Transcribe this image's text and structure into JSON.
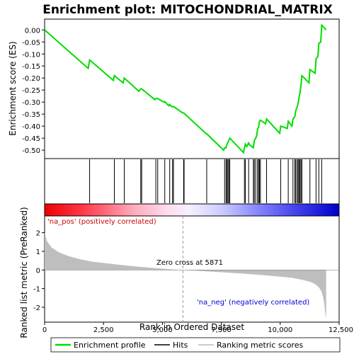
{
  "chart_data": {
    "type": "line",
    "title": "Enrichment plot: MITOCHONDRIAL_MATRIX",
    "top_panel": {
      "ylabel": "Enrichment score (ES)",
      "ylim": [
        -0.535,
        0.045
      ],
      "yticks": [
        0.0,
        -0.05,
        -0.1,
        -0.15,
        -0.2,
        -0.25,
        -0.3,
        -0.35,
        -0.4,
        -0.45,
        -0.5
      ],
      "ytick_labels": [
        "0.00",
        "-0.05",
        "-0.10",
        "-0.15",
        "-0.20",
        "-0.25",
        "-0.30",
        "-0.35",
        "-0.40",
        "-0.45",
        "-0.50"
      ],
      "series": [
        {
          "name": "Enrichment profile",
          "color": "#00dd00",
          "x": [
            0,
            1850,
            1910,
            2920,
            2960,
            3330,
            3380,
            4000,
            4080,
            4120,
            4680,
            4720,
            4800,
            5060,
            5100,
            5270,
            5310,
            5380,
            5430,
            5470,
            5860,
            5900,
            6840,
            6880,
            7600,
            7640,
            7700,
            7740,
            7780,
            7820,
            7860,
            8440,
            8480,
            8520,
            8580,
            8660,
            8700,
            8860,
            8900,
            8960,
            9000,
            9040,
            9080,
            9120,
            9160,
            9380,
            9420,
            9980,
            10020,
            10300,
            10340,
            10500,
            10540,
            10620,
            10660,
            10720,
            10760,
            10800,
            10840,
            10880,
            10920,
            11220,
            11260,
            11480,
            11520,
            11600,
            11640,
            11720,
            11760,
            11950
          ],
          "y": [
            0.0,
            -0.16,
            -0.125,
            -0.21,
            -0.19,
            -0.22,
            -0.2,
            -0.255,
            -0.245,
            -0.245,
            -0.29,
            -0.285,
            -0.285,
            -0.3,
            -0.298,
            -0.315,
            -0.31,
            -0.318,
            -0.32,
            -0.318,
            -0.345,
            -0.345,
            -0.43,
            -0.432,
            -0.5,
            -0.49,
            -0.49,
            -0.475,
            -0.468,
            -0.46,
            -0.45,
            -0.51,
            -0.49,
            -0.475,
            -0.485,
            -0.47,
            -0.478,
            -0.49,
            -0.46,
            -0.45,
            -0.44,
            -0.41,
            -0.405,
            -0.38,
            -0.375,
            -0.39,
            -0.37,
            -0.43,
            -0.4,
            -0.41,
            -0.38,
            -0.4,
            -0.37,
            -0.36,
            -0.335,
            -0.32,
            -0.305,
            -0.28,
            -0.26,
            -0.23,
            -0.19,
            -0.22,
            -0.165,
            -0.18,
            -0.12,
            -0.11,
            -0.055,
            -0.05,
            0.02,
            0.0
          ]
        }
      ]
    },
    "hits": [
      1910,
      2960,
      3380,
      4080,
      4120,
      4720,
      4800,
      5100,
      5310,
      5430,
      5470,
      5900,
      5920,
      6880,
      7640,
      7700,
      7740,
      7780,
      7820,
      7860,
      8480,
      8520,
      8660,
      8860,
      8900,
      8960,
      9040,
      9080,
      9120,
      9160,
      9420,
      10020,
      10340,
      10540,
      10620,
      10660,
      10720,
      10760,
      10800,
      10840,
      10880,
      10920,
      11260,
      11520,
      11640,
      11760
    ],
    "bottom_panel": {
      "xlabel": "Rank in Ordered Dataset",
      "ylabel": "Ranked list metric (PreRanked)",
      "xlim": [
        0,
        12500
      ],
      "xticks": [
        0,
        2500,
        5000,
        7500,
        10000,
        12500
      ],
      "xtick_labels": [
        "0",
        "2,500",
        "5,000",
        "7,500",
        "10,000",
        "12,500"
      ],
      "ylim": [
        -2.8,
        2.9
      ],
      "yticks": [
        2,
        1,
        0,
        -1,
        -2
      ],
      "ytick_labels": [
        "2",
        "1",
        "0",
        "-1",
        "-2"
      ],
      "metric_x": [
        0,
        100,
        300,
        600,
        1000,
        1500,
        2000,
        3000,
        4000,
        5000,
        5871,
        6500,
        7500,
        8500,
        9500,
        10500,
        11000,
        11300,
        11500,
        11650,
        11750,
        11820,
        11870,
        11900,
        11950
      ],
      "metric_y": [
        2.0,
        1.55,
        1.2,
        0.95,
        0.75,
        0.58,
        0.45,
        0.3,
        0.17,
        0.07,
        0.0,
        -0.05,
        -0.12,
        -0.2,
        -0.3,
        -0.42,
        -0.55,
        -0.65,
        -0.78,
        -0.95,
        -1.15,
        -1.45,
        -1.8,
        -2.2,
        -2.6
      ],
      "zero_cross_rank": 5871,
      "zero_cross_label": "Zero cross at 5871",
      "pos_label": "'na_pos' (positively correlated)",
      "neg_label": "'na_neg' (negatively correlated)"
    },
    "legend": {
      "placement": "bottom",
      "entries": [
        {
          "label": "Enrichment profile",
          "color": "#00dd00"
        },
        {
          "label": "Hits",
          "color": "#000000"
        },
        {
          "label": "Ranking metric scores",
          "color": "#bbbbbb"
        }
      ]
    },
    "colors": {
      "heat_pos": "#ff0033",
      "heat_neg": "#0000ff",
      "metric_fill": "#bebebe",
      "pos_label_color": "#cc0000",
      "neg_label_color": "#0000cc"
    }
  }
}
